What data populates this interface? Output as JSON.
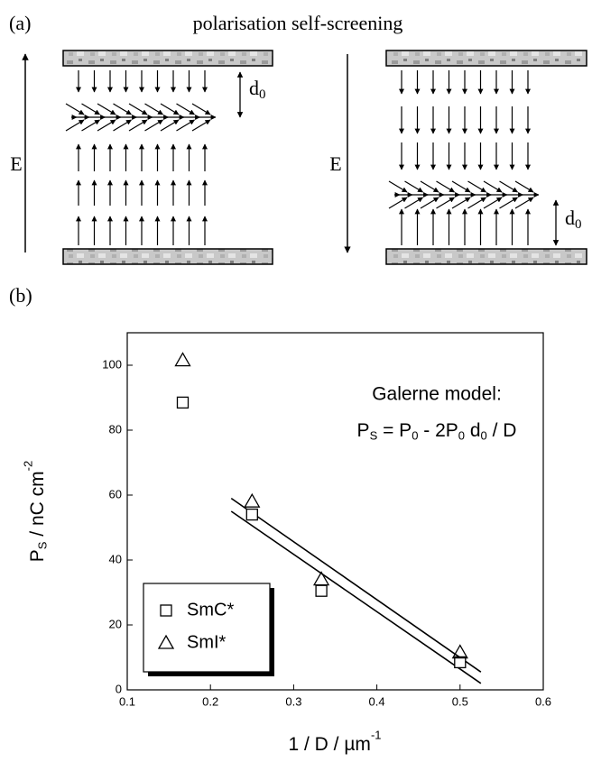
{
  "diagram": {
    "panel_label": "(a)",
    "title": "polarisation self-screening",
    "left_field": "E",
    "right_field": "E",
    "left_distance": {
      "base": "d",
      "sub": "0"
    },
    "right_distance": {
      "base": "d",
      "sub": "0"
    }
  },
  "chart_panel_label": "(b)",
  "chart_data": {
    "type": "scatter",
    "x": [
      0.1667,
      0.25,
      0.3333,
      0.5
    ],
    "series": [
      {
        "name": "SmC*",
        "marker": "square",
        "color": "#000000",
        "values": [
          88.5,
          54,
          30.5,
          8.5
        ]
      },
      {
        "name": "SmI*",
        "marker": "triangle",
        "color": "#000000",
        "values": [
          101.5,
          58,
          34,
          11.5
        ]
      }
    ],
    "lines": [
      {
        "x": [
          0.225,
          0.525
        ],
        "values": [
          59,
          5.5
        ]
      },
      {
        "x": [
          0.225,
          0.525
        ],
        "values": [
          55,
          2
        ]
      }
    ],
    "annotation_title": "Galerne model:",
    "annotation_formula": [
      {
        "text": "P"
      },
      {
        "sub": "S"
      },
      {
        "text": " = P"
      },
      {
        "sub": "0"
      },
      {
        "text": " - 2P"
      },
      {
        "sub": "0"
      },
      {
        "text": " d"
      },
      {
        "sub": "0"
      },
      {
        "text": " / D"
      }
    ],
    "x_label": [
      {
        "text": "1 / D  /  µm"
      },
      {
        "sup": "-1"
      }
    ],
    "y_label": [
      {
        "text": "P"
      },
      {
        "sub": "S"
      },
      {
        "text": "  /  nC cm"
      },
      {
        "sup": "-2"
      }
    ],
    "xlim": [
      0.1,
      0.6
    ],
    "xticks": [
      0.1,
      0.2,
      0.3,
      0.4,
      0.5,
      0.6
    ],
    "ylim": [
      0,
      110
    ],
    "yticks": [
      0,
      20,
      40,
      60,
      80,
      100
    ],
    "legend_position": "lower left"
  }
}
